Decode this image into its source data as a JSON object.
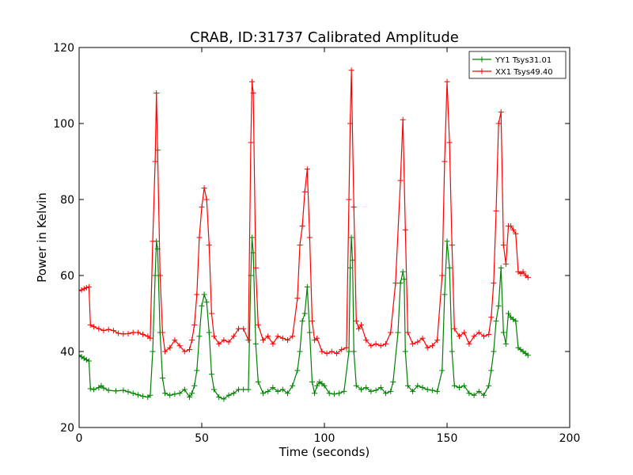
{
  "chart_data": {
    "type": "line",
    "title": "CRAB, ID:31737 Calibrated Amplitude",
    "xlabel": "Time (seconds)",
    "ylabel": "Power in Kelvin",
    "xlim": [
      0,
      200
    ],
    "ylim": [
      20,
      120
    ],
    "xticks": [
      0,
      50,
      100,
      150,
      200
    ],
    "yticks": [
      20,
      40,
      60,
      80,
      100,
      120
    ],
    "grid": false,
    "legend_position": "top-right",
    "marker": "plus",
    "series": [
      {
        "name": "YY1 Tsys31.01",
        "color": "#008000",
        "points": [
          [
            0,
            39
          ],
          [
            1,
            38.6
          ],
          [
            2,
            38.2
          ],
          [
            3,
            37.8
          ],
          [
            4,
            37.5
          ],
          [
            4.6,
            30.2
          ],
          [
            6,
            30
          ],
          [
            8,
            30.5
          ],
          [
            9,
            31
          ],
          [
            10,
            30.4
          ],
          [
            12,
            29.8
          ],
          [
            15,
            29.6
          ],
          [
            18,
            29.8
          ],
          [
            20,
            29.4
          ],
          [
            22,
            29
          ],
          [
            24,
            28.6
          ],
          [
            26,
            28.2
          ],
          [
            28,
            28
          ],
          [
            29,
            28.5
          ],
          [
            30,
            40
          ],
          [
            31,
            60
          ],
          [
            31.5,
            69
          ],
          [
            32,
            67
          ],
          [
            33,
            45
          ],
          [
            34,
            33
          ],
          [
            35,
            29
          ],
          [
            37,
            28.5
          ],
          [
            39,
            28.8
          ],
          [
            41,
            29
          ],
          [
            43,
            30
          ],
          [
            45,
            28
          ],
          [
            46,
            29
          ],
          [
            47,
            31
          ],
          [
            48,
            35
          ],
          [
            49,
            44
          ],
          [
            50,
            52
          ],
          [
            51,
            55
          ],
          [
            52,
            53
          ],
          [
            53,
            45
          ],
          [
            54,
            34
          ],
          [
            55,
            30
          ],
          [
            57,
            28
          ],
          [
            59,
            27.5
          ],
          [
            61,
            28.5
          ],
          [
            63,
            29
          ],
          [
            65,
            30
          ],
          [
            67,
            30
          ],
          [
            69,
            30
          ],
          [
            70,
            60
          ],
          [
            70.5,
            70
          ],
          [
            71,
            66
          ],
          [
            72,
            42
          ],
          [
            73,
            32
          ],
          [
            75,
            29
          ],
          [
            77,
            29.5
          ],
          [
            79,
            30.5
          ],
          [
            81,
            29.5
          ],
          [
            83,
            30
          ],
          [
            85,
            29
          ],
          [
            87,
            31
          ],
          [
            89,
            35
          ],
          [
            90,
            40
          ],
          [
            91,
            48
          ],
          [
            92,
            50
          ],
          [
            93,
            57
          ],
          [
            94,
            45
          ],
          [
            95,
            32
          ],
          [
            96,
            29
          ],
          [
            97,
            31
          ],
          [
            98,
            32
          ],
          [
            99,
            31.5
          ],
          [
            100,
            31
          ],
          [
            102,
            29
          ],
          [
            104,
            28.8
          ],
          [
            106,
            29
          ],
          [
            108,
            29.5
          ],
          [
            110,
            40
          ],
          [
            110.5,
            62
          ],
          [
            111,
            70
          ],
          [
            111.5,
            64
          ],
          [
            112,
            40
          ],
          [
            113,
            31
          ],
          [
            115,
            30
          ],
          [
            117,
            30.5
          ],
          [
            119,
            29.5
          ],
          [
            121,
            29.8
          ],
          [
            123,
            30.5
          ],
          [
            125,
            29
          ],
          [
            127,
            29.5
          ],
          [
            128,
            32
          ],
          [
            130,
            45
          ],
          [
            131,
            58
          ],
          [
            132,
            61
          ],
          [
            132.5,
            59
          ],
          [
            133,
            40
          ],
          [
            134,
            31
          ],
          [
            136,
            29.5
          ],
          [
            138,
            31
          ],
          [
            140,
            30.5
          ],
          [
            142,
            30
          ],
          [
            144,
            29.8
          ],
          [
            146,
            29.5
          ],
          [
            148,
            35
          ],
          [
            149,
            55
          ],
          [
            150,
            69
          ],
          [
            151,
            62
          ],
          [
            152,
            40
          ],
          [
            153,
            31
          ],
          [
            155,
            30.5
          ],
          [
            157,
            31
          ],
          [
            159,
            29
          ],
          [
            161,
            28.5
          ],
          [
            163,
            29.5
          ],
          [
            165,
            28.5
          ],
          [
            167,
            31
          ],
          [
            168,
            35
          ],
          [
            169,
            40
          ],
          [
            170,
            48
          ],
          [
            171,
            52
          ],
          [
            172,
            62
          ],
          [
            173,
            45
          ],
          [
            174,
            42
          ],
          [
            175,
            50
          ],
          [
            176,
            49
          ],
          [
            177,
            48.5
          ],
          [
            178,
            48
          ],
          [
            179,
            41
          ],
          [
            180,
            40.5
          ],
          [
            181,
            40
          ],
          [
            182,
            39.5
          ],
          [
            183,
            39
          ]
        ]
      },
      {
        "name": "XX1 Tsys49.40",
        "color": "#ff0000",
        "points": [
          [
            0,
            56
          ],
          [
            1,
            56.2
          ],
          [
            2,
            56.5
          ],
          [
            3,
            56.8
          ],
          [
            4,
            57
          ],
          [
            4.6,
            47
          ],
          [
            6,
            46.5
          ],
          [
            8,
            46
          ],
          [
            10,
            45.5
          ],
          [
            12,
            45.8
          ],
          [
            14,
            45.5
          ],
          [
            16,
            44.8
          ],
          [
            18,
            44.6
          ],
          [
            20,
            44.7
          ],
          [
            22,
            45
          ],
          [
            24,
            45
          ],
          [
            26,
            44.5
          ],
          [
            28,
            44
          ],
          [
            29,
            43.5
          ],
          [
            30,
            69
          ],
          [
            31,
            90
          ],
          [
            31.5,
            108
          ],
          [
            32,
            93
          ],
          [
            33,
            60
          ],
          [
            34,
            45
          ],
          [
            35,
            40
          ],
          [
            37,
            41
          ],
          [
            39,
            43
          ],
          [
            41,
            41.5
          ],
          [
            43,
            40
          ],
          [
            45,
            40.5
          ],
          [
            46,
            43
          ],
          [
            47,
            47
          ],
          [
            48,
            55
          ],
          [
            49,
            70
          ],
          [
            50,
            78
          ],
          [
            51,
            83
          ],
          [
            52,
            80
          ],
          [
            53,
            68
          ],
          [
            54,
            50
          ],
          [
            55,
            44
          ],
          [
            57,
            42
          ],
          [
            59,
            43
          ],
          [
            61,
            42.5
          ],
          [
            63,
            44
          ],
          [
            65,
            46
          ],
          [
            67,
            46
          ],
          [
            69,
            43
          ],
          [
            70,
            95
          ],
          [
            70.5,
            111
          ],
          [
            71,
            108
          ],
          [
            72,
            62
          ],
          [
            73,
            47
          ],
          [
            75,
            43
          ],
          [
            77,
            44
          ],
          [
            79,
            42
          ],
          [
            81,
            44
          ],
          [
            83,
            43.5
          ],
          [
            85,
            43
          ],
          [
            87,
            44
          ],
          [
            89,
            54
          ],
          [
            90,
            68
          ],
          [
            91,
            73
          ],
          [
            92,
            82
          ],
          [
            93,
            88
          ],
          [
            94,
            70
          ],
          [
            95,
            48
          ],
          [
            96,
            43
          ],
          [
            97,
            43.5
          ],
          [
            99,
            40
          ],
          [
            101,
            39.5
          ],
          [
            103,
            40
          ],
          [
            105,
            39.5
          ],
          [
            107,
            40.5
          ],
          [
            109,
            41
          ],
          [
            110,
            80
          ],
          [
            110.5,
            100
          ],
          [
            111,
            114
          ],
          [
            112,
            78
          ],
          [
            113,
            48
          ],
          [
            114,
            46
          ],
          [
            115,
            47
          ],
          [
            117,
            43
          ],
          [
            119,
            41.5
          ],
          [
            121,
            42
          ],
          [
            123,
            41.5
          ],
          [
            125,
            42
          ],
          [
            127,
            45
          ],
          [
            129,
            58
          ],
          [
            131,
            85
          ],
          [
            132,
            101
          ],
          [
            133,
            72
          ],
          [
            134,
            45
          ],
          [
            136,
            42
          ],
          [
            138,
            42.5
          ],
          [
            140,
            43.5
          ],
          [
            142,
            41
          ],
          [
            144,
            41.5
          ],
          [
            146,
            43
          ],
          [
            148,
            60
          ],
          [
            149,
            90
          ],
          [
            150,
            111
          ],
          [
            151,
            95
          ],
          [
            152,
            68
          ],
          [
            153,
            46
          ],
          [
            155,
            44
          ],
          [
            157,
            45
          ],
          [
            159,
            42
          ],
          [
            161,
            44
          ],
          [
            163,
            45
          ],
          [
            165,
            44
          ],
          [
            167,
            44.5
          ],
          [
            168,
            49
          ],
          [
            169,
            58
          ],
          [
            170,
            77
          ],
          [
            171,
            100
          ],
          [
            172,
            103
          ],
          [
            173,
            68
          ],
          [
            174,
            63
          ],
          [
            175,
            73
          ],
          [
            176,
            73
          ],
          [
            177,
            72
          ],
          [
            178,
            71
          ],
          [
            179,
            61
          ],
          [
            180,
            60.5
          ],
          [
            181,
            61
          ],
          [
            182,
            60
          ],
          [
            183,
            59.5
          ]
        ]
      }
    ]
  }
}
